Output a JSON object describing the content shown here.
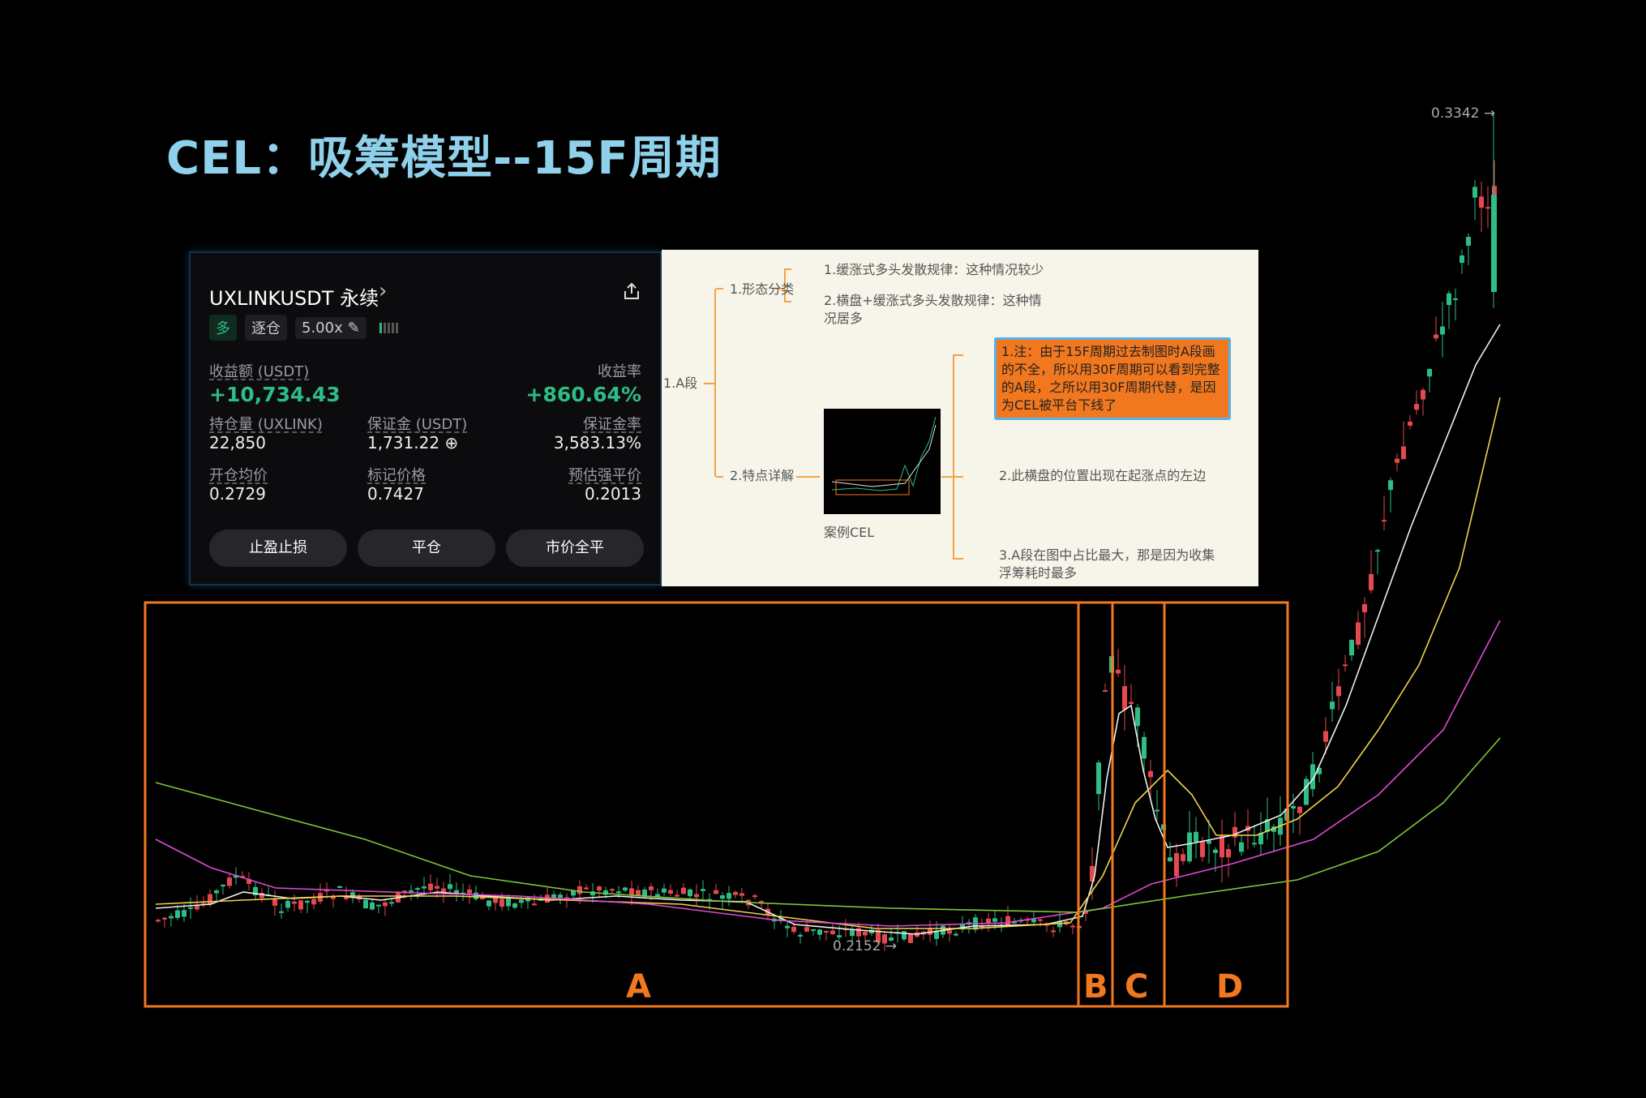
{
  "title": "CEL：吸筹模型--15F周期",
  "card": {
    "symbol": "UXLINKUSDT 永续",
    "tag_side": "多",
    "tag_margin": "逐仓",
    "tag_leverage": "5.00x",
    "pnl_label": "收益额 (USDT)",
    "pnl_value": "+10,734.43",
    "roe_label": "收益率",
    "roe_value": "+860.64%",
    "size_label": "持仓量 (UXLINK)",
    "size_value": "22,850",
    "margin_label": "保证金 (USDT)",
    "margin_value": "1,731.22",
    "margin_ratio_label": "保证金率",
    "margin_ratio_value": "3,583.13%",
    "entry_label": "开仓均价",
    "entry_value": "0.2729",
    "mark_label": "标记价格",
    "mark_value": "0.7427",
    "liq_label": "预估强平价",
    "liq_value": "0.2013",
    "btn_tpsl": "止盈止损",
    "btn_close": "平仓",
    "btn_market_close": "市价全平"
  },
  "mind": {
    "root": "1.A段",
    "branch1": "1.形态分类",
    "branch1_a": "1.缓涨式多头发散规律：这种情况较少",
    "branch1_b_line1": "2.横盘+缓涨式多头发散规律：这种情",
    "branch1_b_line2": "况居多",
    "branch2": "2.特点详解",
    "note": "1.注：由于15F周期过去制图时A段画的不全，所以用30F周期可以看到完整的A段，之所以用30F周期代替，是因为CEL被平台下线了",
    "point2": "2.此横盘的位置出现在起涨点的左边",
    "point3_line1": "3.A段在图中占比最大，那是因为收集",
    "point3_line2": "浮筹耗时最多",
    "case_label": "案例CEL"
  },
  "chart_data": {
    "type": "candlestick",
    "price_high_label": "0.3342 →",
    "price_low_label": "0.2152 →",
    "segments": [
      "A",
      "B",
      "C",
      "D"
    ],
    "accent_color": "#f2781f",
    "up_color": "#2ebd85",
    "down_color": "#e5484d"
  }
}
